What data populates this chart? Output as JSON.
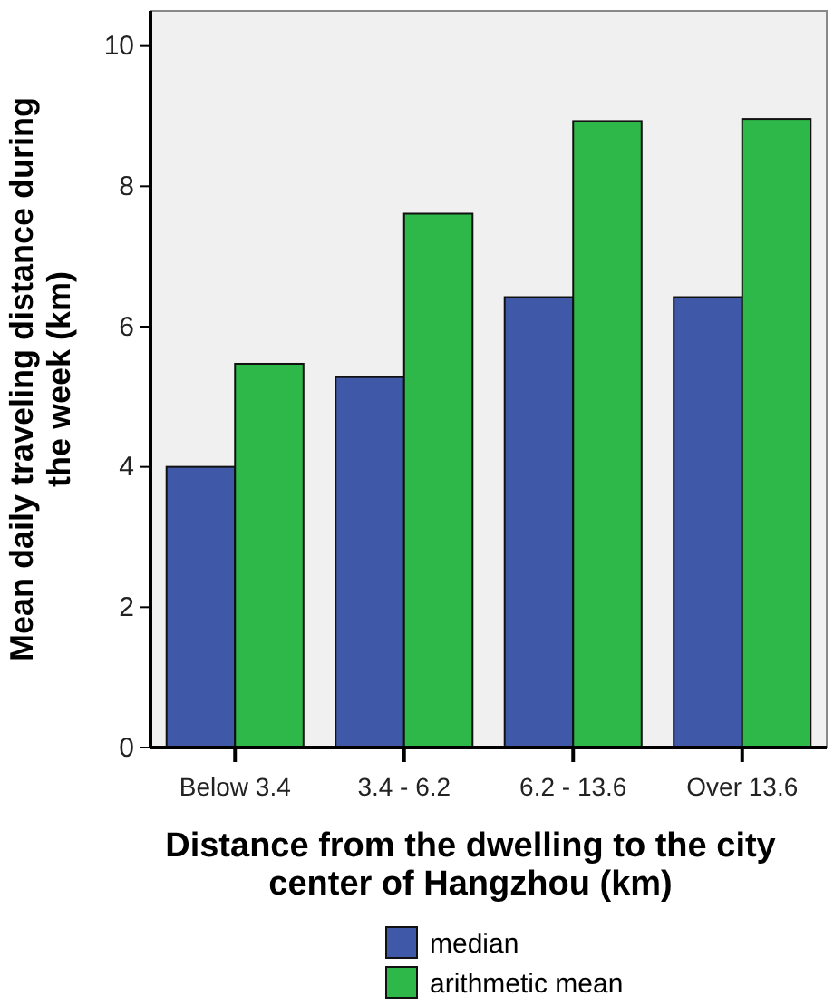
{
  "chart_data": {
    "type": "bar",
    "xlabel": "Distance from the dwelling to the city center of Hangzhou (km)",
    "ylabel": "Mean daily traveling distance during the week (km)",
    "categories": [
      "Below 3.4",
      "3.4 - 6.2",
      "6.2 - 13.6",
      "Over 13.6"
    ],
    "series": [
      {
        "name": "median",
        "color": "#3f58a8",
        "values": [
          4.0,
          5.28,
          6.42,
          6.42
        ]
      },
      {
        "name": "arithmetic mean",
        "color": "#2eb84a",
        "values": [
          5.47,
          7.61,
          8.93,
          8.96
        ]
      }
    ],
    "ylim": [
      0,
      10.5
    ],
    "yticks": [
      0,
      2,
      4,
      6,
      8,
      10
    ],
    "grid": false,
    "legend": "bottom"
  }
}
